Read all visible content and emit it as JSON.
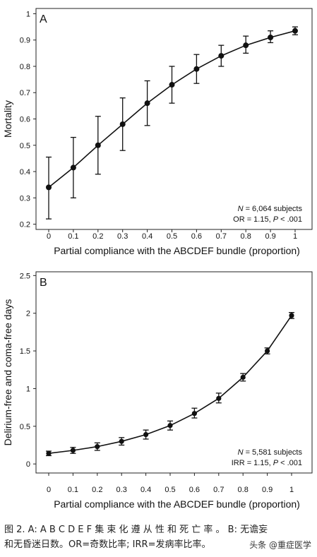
{
  "chart_data": [
    {
      "type": "line",
      "panel_label": "A",
      "xlabel": "Partial compliance with the ABCDEF bundle (proportion)",
      "ylabel": "Mortality",
      "x": [
        0,
        0.1,
        0.2,
        0.3,
        0.4,
        0.5,
        0.6,
        0.7,
        0.8,
        0.9,
        1
      ],
      "x_tick_labels": [
        "0",
        "0.1",
        "0.2",
        "0.3",
        "0.4",
        "0.5",
        "0.6",
        "0.7",
        "0.8",
        "0.9",
        "1"
      ],
      "y_ticks": [
        0.2,
        0.3,
        0.4,
        0.5,
        0.6,
        0.7,
        0.8,
        0.9,
        1
      ],
      "y_tick_labels": [
        "0.2",
        "0.3",
        "0.4",
        "0.5",
        "0.6",
        "0.7",
        "0.8",
        "0.9",
        "1"
      ],
      "ylim": [
        0.18,
        1.02
      ],
      "series": [
        {
          "values": [
            0.34,
            0.415,
            0.5,
            0.58,
            0.66,
            0.73,
            0.79,
            0.84,
            0.88,
            0.91,
            0.935
          ],
          "lower": [
            0.22,
            0.3,
            0.39,
            0.48,
            0.575,
            0.66,
            0.735,
            0.8,
            0.85,
            0.89,
            0.92
          ],
          "upper": [
            0.455,
            0.53,
            0.61,
            0.68,
            0.745,
            0.8,
            0.845,
            0.88,
            0.915,
            0.935,
            0.95
          ]
        }
      ],
      "annotation": {
        "n_italic": "N",
        "n_text": " = 6,064 subjects",
        "stat_prefix": "OR = 1.15, ",
        "p_italic": "P",
        "stat_suffix": " < .001"
      },
      "grid": false
    },
    {
      "type": "line",
      "panel_label": "B",
      "xlabel": "Partial compliance with the ABCDEF bundle (proportion)",
      "ylabel": "Delirium-free and coma-free days",
      "x": [
        0,
        0.1,
        0.2,
        0.3,
        0.4,
        0.5,
        0.6,
        0.7,
        0.8,
        0.9,
        1
      ],
      "x_tick_labels": [
        "0",
        "0.1",
        "0.2",
        "0.3",
        "0.4",
        "0.5",
        "0.6",
        "0.7",
        "0.8",
        "0.9",
        "1"
      ],
      "y_ticks": [
        0,
        0.5,
        1,
        1.5,
        2,
        2.5
      ],
      "y_tick_labels": [
        "0",
        "0.5",
        "1",
        "1.5",
        "2",
        "2.5"
      ],
      "ylim": [
        -0.12,
        2.55
      ],
      "series": [
        {
          "values": [
            0.14,
            0.18,
            0.23,
            0.3,
            0.39,
            0.51,
            0.67,
            0.87,
            1.15,
            1.5,
            1.97
          ],
          "lower": [
            0.11,
            0.14,
            0.18,
            0.25,
            0.33,
            0.45,
            0.61,
            0.81,
            1.1,
            1.46,
            1.93
          ],
          "upper": [
            0.17,
            0.22,
            0.28,
            0.35,
            0.45,
            0.57,
            0.74,
            0.94,
            1.2,
            1.54,
            2.01
          ]
        }
      ],
      "annotation": {
        "n_italic": "N",
        "n_text": " = 5,581 subjects",
        "stat_prefix": "IRR = 1.15, ",
        "p_italic": "P",
        "stat_suffix": " < .001"
      },
      "grid": false
    }
  ],
  "caption": {
    "line1": "图 2. A: A B C D E F 集 束 化 遵 从 性 和 死 亡 率 。 B: 无谵妄",
    "line2": "和无昏迷日数。OR=奇数比率; IRR=发病率比率。"
  },
  "watermark": "头条 @重症医学"
}
